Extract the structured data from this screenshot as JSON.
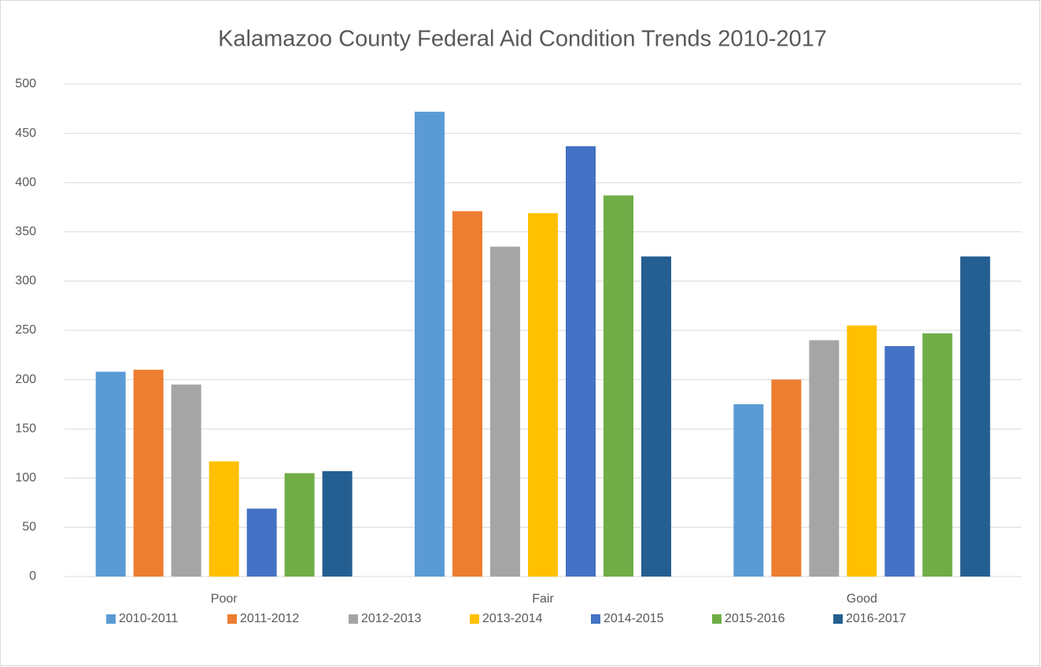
{
  "chart_data": {
    "type": "bar",
    "title": "Kalamazoo County  Federal Aid Condition Trends 2010-2017",
    "categories": [
      "Poor",
      "Fair",
      "Good"
    ],
    "series": [
      {
        "name": "2010-2011",
        "color": "#5b9bd5",
        "values": [
          208,
          472,
          175
        ]
      },
      {
        "name": "2011-2012",
        "color": "#ed7d31",
        "values": [
          210,
          371,
          200
        ]
      },
      {
        "name": "2012-2013",
        "color": "#a5a5a5",
        "values": [
          195,
          335,
          240
        ]
      },
      {
        "name": "2013-2014",
        "color": "#ffc000",
        "values": [
          117,
          369,
          255
        ]
      },
      {
        "name": "2014-2015",
        "color": "#4472c4",
        "values": [
          69,
          437,
          234
        ]
      },
      {
        "name": "2015-2016",
        "color": "#70ad47",
        "values": [
          105,
          387,
          247
        ]
      },
      {
        "name": "2016-2017",
        "color": "#255e91",
        "values": [
          107,
          325,
          325
        ]
      }
    ],
    "ylim": [
      0,
      500
    ],
    "yticks": [
      0,
      50,
      100,
      150,
      200,
      250,
      300,
      350,
      400,
      450,
      500
    ],
    "grid": true,
    "legend": "bottom"
  }
}
